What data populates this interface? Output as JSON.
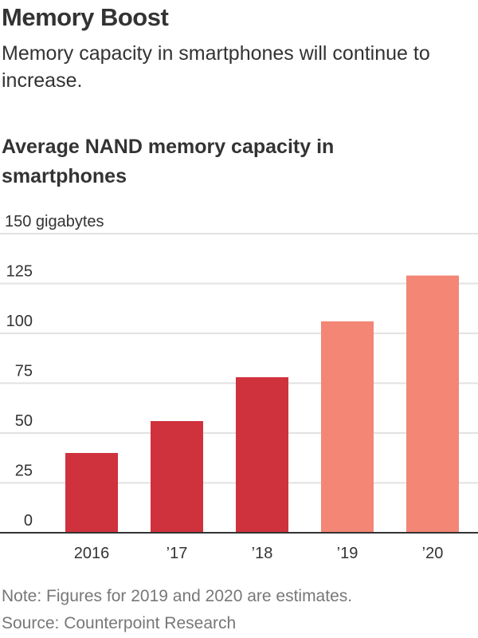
{
  "header": {
    "title": "Memory Boost",
    "subtitle": "Memory capacity in smartphones will continue to increase."
  },
  "chart_data": {
    "type": "bar",
    "title": "Average NAND memory capacity in smartphones",
    "ylabel": "",
    "yunit_label": "gigabytes",
    "categories": [
      "2016",
      "’17",
      "’18",
      "’19",
      "’20"
    ],
    "values": [
      40,
      56,
      78,
      106,
      129
    ],
    "estimated": [
      false,
      false,
      false,
      true,
      true
    ],
    "ylim": [
      0,
      150
    ],
    "yticks": [
      0,
      25,
      50,
      75,
      100,
      125,
      150
    ],
    "grid": true,
    "colors": {
      "actual": "#cf323c",
      "estimate": "#f38675",
      "grid": "#e2e2e2",
      "axis": "#333333"
    }
  },
  "footer": {
    "note": "Note: Figures for 2019 and 2020 are estimates.",
    "source": "Source: Counterpoint Research"
  }
}
